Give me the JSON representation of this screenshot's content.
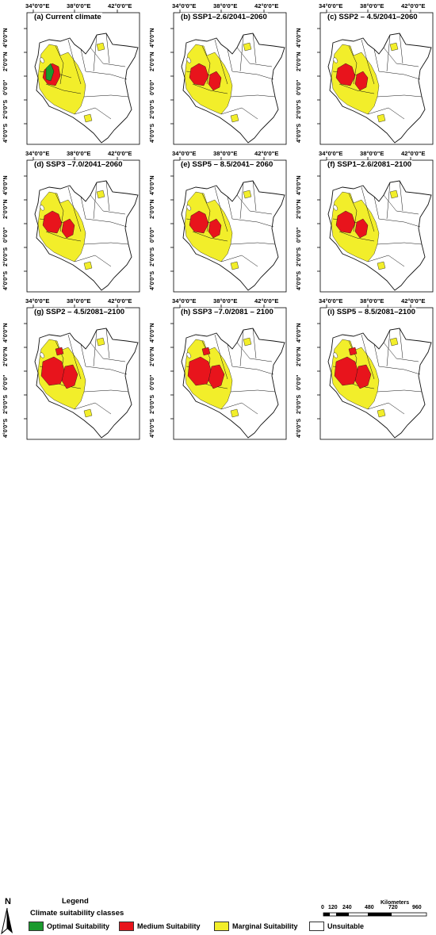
{
  "panels": [
    {
      "title": "(a) Current climate",
      "optimal": true,
      "red": 1
    },
    {
      "title": "(b) SSP1–2.6/2041–2060",
      "optimal": false,
      "red": 2
    },
    {
      "title": "(c) SSP2 – 4.5/2041–2060",
      "optimal": false,
      "red": 2
    },
    {
      "title": "(d) SSP3 –7.0/2041–2060",
      "optimal": false,
      "red": 2
    },
    {
      "title": "(e) SSP5 – 8.5/2041– 2060",
      "optimal": false,
      "red": 2
    },
    {
      "title": "(f) SSP1–2.6/2081–2100",
      "optimal": false,
      "red": 2
    },
    {
      "title": "(g) SSP2 – 4.5/2081–2100",
      "optimal": false,
      "red": 3
    },
    {
      "title": "(h) SSP3 –7.0/2081 – 2100",
      "optimal": false,
      "red": 3
    },
    {
      "title": "(i) SSP5 – 8.5/2081–2100",
      "optimal": false,
      "red": 3
    }
  ],
  "lon_ticks": [
    "34°0'0\"E",
    "38°0'0\"E",
    "42°0'0\"E"
  ],
  "lat_ticks": [
    "4°0'0\"N",
    "2°0'0\"N",
    "0°0'0\"",
    "2°0'0\"S",
    "4°0'0\"S"
  ],
  "legend": {
    "north": "N",
    "title": "Legend",
    "subtitle": "Climate suitability classes",
    "items": [
      {
        "label": "Optimal Suitability",
        "color": "#1a9a2e"
      },
      {
        "label": "Medium Suitability",
        "color": "#e8141c"
      },
      {
        "label": "Marginal Suitability",
        "color": "#f2ee2a"
      },
      {
        "label": "Unsuitable",
        "color": "#ffffff"
      }
    ]
  },
  "scale": {
    "unit": "Kilometers",
    "labels": [
      "0",
      "120",
      "240",
      "480",
      "720",
      "960"
    ]
  },
  "colors": {
    "outline": "#111111",
    "optimal": "#1a9a2e",
    "medium": "#e8141c",
    "marginal": "#f2ee2a"
  }
}
